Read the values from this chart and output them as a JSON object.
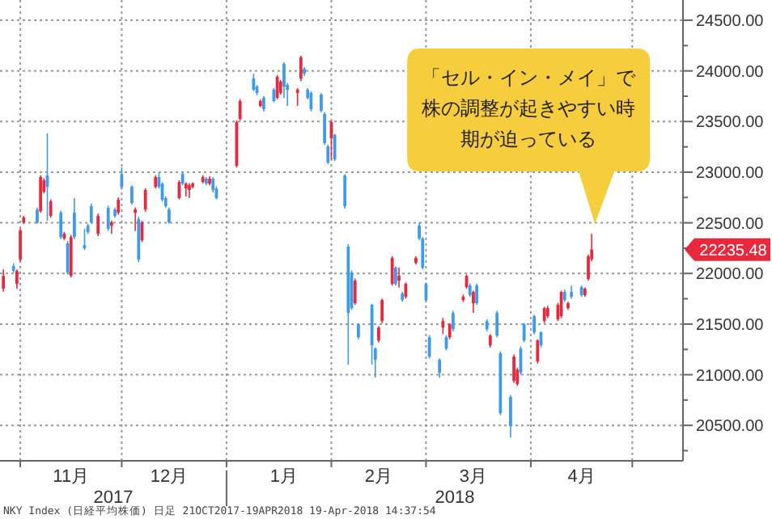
{
  "chart_data": {
    "type": "candlestick",
    "x": [
      "2017-10-27",
      "2017-10-30",
      "2017-10-31",
      "2017-11-01",
      "2017-11-02",
      "2017-11-06",
      "2017-11-07",
      "2017-11-08",
      "2017-11-09",
      "2017-11-10",
      "2017-11-13",
      "2017-11-14",
      "2017-11-15",
      "2017-11-16",
      "2017-11-17",
      "2017-11-20",
      "2017-11-21",
      "2017-11-22",
      "2017-11-24",
      "2017-11-27",
      "2017-11-28",
      "2017-11-29",
      "2017-11-30",
      "2017-12-01",
      "2017-12-04",
      "2017-12-05",
      "2017-12-06",
      "2017-12-07",
      "2017-12-08",
      "2017-12-11",
      "2017-12-12",
      "2017-12-13",
      "2017-12-14",
      "2017-12-15",
      "2017-12-18",
      "2017-12-19",
      "2017-12-20",
      "2017-12-21",
      "2017-12-22",
      "2017-12-25",
      "2017-12-26",
      "2017-12-27",
      "2017-12-28",
      "2017-12-29",
      "2018-01-04",
      "2018-01-05",
      "2018-01-09",
      "2018-01-10",
      "2018-01-11",
      "2018-01-12",
      "2018-01-15",
      "2018-01-16",
      "2018-01-17",
      "2018-01-18",
      "2018-01-19",
      "2018-01-22",
      "2018-01-23",
      "2018-01-24",
      "2018-01-25",
      "2018-01-26",
      "2018-01-29",
      "2018-01-30",
      "2018-01-31",
      "2018-02-01",
      "2018-02-02",
      "2018-02-05",
      "2018-02-06",
      "2018-02-07",
      "2018-02-08",
      "2018-02-09",
      "2018-02-13",
      "2018-02-14",
      "2018-02-15",
      "2018-02-16",
      "2018-02-19",
      "2018-02-20",
      "2018-02-21",
      "2018-02-22",
      "2018-02-23",
      "2018-02-26",
      "2018-02-27",
      "2018-02-28",
      "2018-03-01",
      "2018-03-02",
      "2018-03-05",
      "2018-03-06",
      "2018-03-07",
      "2018-03-08",
      "2018-03-09",
      "2018-03-12",
      "2018-03-13",
      "2018-03-14",
      "2018-03-15",
      "2018-03-16",
      "2018-03-19",
      "2018-03-20",
      "2018-03-22",
      "2018-03-23",
      "2018-03-26",
      "2018-03-27",
      "2018-03-28",
      "2018-03-29",
      "2018-03-30",
      "2018-04-02",
      "2018-04-03",
      "2018-04-04",
      "2018-04-05",
      "2018-04-06",
      "2018-04-09",
      "2018-04-10",
      "2018-04-11",
      "2018-04-12",
      "2018-04-13",
      "2018-04-16",
      "2018-04-17",
      "2018-04-18",
      "2018-04-19"
    ],
    "ohlc": [
      [
        21850,
        22040,
        21820,
        21975
      ],
      [
        22073,
        22100,
        22010,
        22025
      ],
      [
        21897,
        22040,
        21849,
        22025
      ],
      [
        22137,
        22440,
        22120,
        22424
      ],
      [
        22504,
        22570,
        22490,
        22552
      ],
      [
        22630,
        22650,
        22490,
        22500
      ],
      [
        22616,
        22970,
        22600,
        22951
      ],
      [
        22808,
        22940,
        22790,
        22919
      ],
      [
        22967,
        23383,
        22520,
        22855
      ],
      [
        22568,
        22730,
        22550,
        22712
      ],
      [
        22600,
        22620,
        22340,
        22360
      ],
      [
        22344,
        22410,
        22330,
        22392
      ],
      [
        22296,
        22320,
        21990,
        22009
      ],
      [
        21977,
        22380,
        21960,
        22360
      ],
      [
        22600,
        22744,
        22340,
        22360
      ],
      [
        22280,
        22440,
        22230,
        22249
      ],
      [
        22472,
        22490,
        22390,
        22408
      ],
      [
        22664,
        22690,
        22490,
        22504
      ],
      [
        22392,
        22590,
        22370,
        22568
      ],
      [
        22648,
        22670,
        22420,
        22440
      ],
      [
        22472,
        22520,
        22392,
        22504
      ],
      [
        22632,
        22650,
        22550,
        22568
      ],
      [
        22600,
        22750,
        22580,
        22728
      ],
      [
        22983,
        23047,
        22830,
        22855
      ],
      [
        22855,
        22870,
        22680,
        22696
      ],
      [
        22600,
        22650,
        22420,
        22632
      ],
      [
        22536,
        22560,
        22110,
        22137
      ],
      [
        22328,
        22520,
        22310,
        22504
      ],
      [
        22632,
        22840,
        22610,
        22824
      ],
      [
        22855,
        22970,
        22840,
        22951
      ],
      [
        22951,
        22999,
        22840,
        22855
      ],
      [
        22887,
        22900,
        22710,
        22728
      ],
      [
        22744,
        22760,
        22650,
        22664
      ],
      [
        22632,
        22650,
        22490,
        22504
      ],
      [
        22744,
        22920,
        22730,
        22903
      ],
      [
        22983,
        23000,
        22870,
        22887
      ],
      [
        22839,
        22900,
        22760,
        22887
      ],
      [
        22824,
        22890,
        22744,
        22871
      ],
      [
        22855,
        22900,
        22840,
        22887
      ],
      [
        22903,
        22970,
        22890,
        22951
      ],
      [
        22935,
        22950,
        22870,
        22887
      ],
      [
        22887,
        22960,
        22870,
        22935
      ],
      [
        22935,
        22950,
        22800,
        22824
      ],
      [
        22839,
        22860,
        22730,
        22744
      ],
      [
        23063,
        23510,
        23047,
        23494
      ],
      [
        23526,
        23720,
        23510,
        23702
      ],
      [
        23925,
        23973,
        23800,
        23814
      ],
      [
        23846,
        23860,
        23760,
        23782
      ],
      [
        23654,
        23720,
        23640,
        23702
      ],
      [
        23734,
        23750,
        23600,
        23622
      ],
      [
        23814,
        23830,
        23690,
        23702
      ],
      [
        23734,
        23960,
        23720,
        23941
      ],
      [
        23782,
        23910,
        23766,
        23894
      ],
      [
        24069,
        24085,
        23734,
        23846
      ],
      [
        23862,
        23880,
        23654,
        23814
      ],
      [
        23782,
        23830,
        23654,
        23814
      ],
      [
        23925,
        24150,
        23900,
        24133
      ],
      [
        24021,
        24040,
        23950,
        23973
      ],
      [
        23814,
        23830,
        23720,
        23734
      ],
      [
        23782,
        23800,
        23600,
        23622
      ],
      [
        23766,
        23780,
        23590,
        23606
      ],
      [
        23574,
        23590,
        23270,
        23287
      ],
      [
        23255,
        23270,
        23080,
        23095
      ],
      [
        23335,
        23510,
        23127,
        23494
      ],
      [
        23367,
        23380,
        23110,
        23127
      ],
      [
        22967,
        22980,
        22640,
        22664
      ],
      [
        22265,
        22290,
        21099,
        21610
      ],
      [
        22009,
        22030,
        21640,
        21658
      ],
      [
        21706,
        21950,
        21690,
        21929
      ],
      [
        21498,
        21510,
        21350,
        21370
      ],
      [
        21690,
        21700,
        21099,
        21290
      ],
      [
        21258,
        21270,
        20971,
        21147
      ],
      [
        21338,
        21480,
        21320,
        21466
      ],
      [
        21530,
        21750,
        21510,
        21738
      ],
      [
        21897,
        22170,
        21880,
        22153
      ],
      [
        22057,
        22070,
        21880,
        21897
      ],
      [
        21929,
        22057,
        21860,
        21977
      ],
      [
        21801,
        21820,
        21720,
        21738
      ],
      [
        21770,
        21910,
        21750,
        21897
      ],
      [
        22105,
        22170,
        22090,
        22153
      ],
      [
        22472,
        22504,
        22330,
        22344
      ],
      [
        22344,
        22360,
        22040,
        22057
      ],
      [
        21897,
        21910,
        21720,
        21738
      ],
      [
        21370,
        21390,
        21160,
        21179
      ],
      [
        21147,
        21160,
        20971,
        21019
      ],
      [
        21466,
        21560,
        21400,
        21530
      ],
      [
        21370,
        21390,
        21240,
        21258
      ],
      [
        21370,
        21510,
        21350,
        21498
      ],
      [
        21610,
        21630,
        21430,
        21450
      ],
      [
        21738,
        21790,
        21720,
        21770
      ],
      [
        21865,
        21990,
        21850,
        21977
      ],
      [
        21881,
        21900,
        21770,
        21786
      ],
      [
        21706,
        21830,
        21610,
        21817
      ],
      [
        21881,
        21900,
        21690,
        21706
      ],
      [
        21530,
        21546,
        21430,
        21450
      ],
      [
        21290,
        21400,
        21270,
        21386
      ],
      [
        21610,
        21630,
        21370,
        21386
      ],
      [
        21211,
        21230,
        20600,
        20620
      ],
      [
        20780,
        20800,
        20380,
        20492
      ],
      [
        20939,
        21200,
        20920,
        21179
      ],
      [
        20907,
        21070,
        20890,
        21051
      ],
      [
        21258,
        21280,
        21000,
        21019
      ],
      [
        21498,
        21510,
        21320,
        21338
      ],
      [
        21578,
        21590,
        21400,
        21418
      ],
      [
        21131,
        21350,
        21110,
        21338
      ],
      [
        21418,
        21430,
        21270,
        21290
      ],
      [
        21530,
        21670,
        21510,
        21658
      ],
      [
        21578,
        21680,
        21560,
        21658
      ],
      [
        21546,
        21710,
        21530,
        21690
      ],
      [
        21578,
        21830,
        21560,
        21817
      ],
      [
        21817,
        21840,
        21720,
        21738
      ],
      [
        21658,
        21720,
        21640,
        21706
      ],
      [
        21817,
        21880,
        21750,
        21770
      ],
      [
        21865,
        21880,
        21770,
        21786
      ],
      [
        21786,
        21860,
        21770,
        21849
      ],
      [
        21945,
        22185,
        21930,
        22169
      ],
      [
        22140,
        22392,
        22120,
        22235.48
      ]
    ],
    "colors": [
      "#e8283c",
      "#3d9be9",
      "#e8283c",
      "#e8283c",
      "#e8283c",
      "#3d9be9",
      "#e8283c",
      "#e8283c",
      "#3d9be9",
      "#e8283c",
      "#3d9be9",
      "#e8283c",
      "#3d9be9",
      "#e8283c",
      "#3d9be9",
      "#3d9be9",
      "#3d9be9",
      "#3d9be9",
      "#e8283c",
      "#3d9be9",
      "#e8283c",
      "#3d9be9",
      "#e8283c",
      "#3d9be9",
      "#3d9be9",
      "#e8283c",
      "#3d9be9",
      "#e8283c",
      "#e8283c",
      "#e8283c",
      "#3d9be9",
      "#3d9be9",
      "#3d9be9",
      "#3d9be9",
      "#e8283c",
      "#3d9be9",
      "#e8283c",
      "#e8283c",
      "#e8283c",
      "#e8283c",
      "#3d9be9",
      "#e8283c",
      "#3d9be9",
      "#3d9be9",
      "#e8283c",
      "#e8283c",
      "#3d9be9",
      "#3d9be9",
      "#e8283c",
      "#3d9be9",
      "#3d9be9",
      "#e8283c",
      "#e8283c",
      "#3d9be9",
      "#3d9be9",
      "#e8283c",
      "#e8283c",
      "#3d9be9",
      "#3d9be9",
      "#3d9be9",
      "#3d9be9",
      "#3d9be9",
      "#3d9be9",
      "#e8283c",
      "#3d9be9",
      "#3d9be9",
      "#3d9be9",
      "#3d9be9",
      "#e8283c",
      "#3d9be9",
      "#3d9be9",
      "#3d9be9",
      "#e8283c",
      "#e8283c",
      "#e8283c",
      "#3d9be9",
      "#e8283c",
      "#3d9be9",
      "#e8283c",
      "#e8283c",
      "#3d9be9",
      "#3d9be9",
      "#3d9be9",
      "#3d9be9",
      "#3d9be9",
      "#e8283c",
      "#3d9be9",
      "#e8283c",
      "#3d9be9",
      "#e8283c",
      "#e8283c",
      "#3d9be9",
      "#e8283c",
      "#3d9be9",
      "#3d9be9",
      "#e8283c",
      "#3d9be9",
      "#3d9be9",
      "#3d9be9",
      "#e8283c",
      "#e8283c",
      "#3d9be9",
      "#3d9be9",
      "#3d9be9",
      "#e8283c",
      "#3d9be9",
      "#e8283c",
      "#e8283c",
      "#e8283c",
      "#e8283c",
      "#3d9be9",
      "#e8283c",
      "#3d9be9",
      "#3d9be9",
      "#e8283c",
      "#e8283c",
      "#e8283c"
    ],
    "xlim": [
      "2017-10-26",
      "2018-05-16"
    ],
    "xticks": [
      {
        "value": "2017-11-01",
        "label": null
      },
      {
        "value": "2017-11-16",
        "label": "11月"
      },
      {
        "value": "2017-12-01",
        "label": null
      },
      {
        "value": "2017-12-15",
        "label": "12月"
      },
      {
        "value": "2018-01-01",
        "label": null
      },
      {
        "value": "2018-01-18",
        "label": "1月"
      },
      {
        "value": "2018-02-01",
        "label": null
      },
      {
        "value": "2018-02-15",
        "label": "2月"
      },
      {
        "value": "2018-03-01",
        "label": null
      },
      {
        "value": "2018-03-15",
        "label": "3月"
      },
      {
        "value": "2018-04-01",
        "label": null
      },
      {
        "value": "2018-04-16",
        "label": "4月"
      },
      {
        "value": "2018-05-01",
        "label": null
      }
    ],
    "ylim": [
      20150,
      24700
    ],
    "yticks": [
      {
        "value": 20250,
        "label": null
      },
      {
        "value": 20500,
        "label": "20500.00"
      },
      {
        "value": 20750,
        "label": null
      },
      {
        "value": 21000,
        "label": "21000.00"
      },
      {
        "value": 21250,
        "label": null
      },
      {
        "value": 21500,
        "label": "21500.00"
      },
      {
        "value": 21750,
        "label": null
      },
      {
        "value": 22000,
        "label": "22000.00"
      },
      {
        "value": 22250,
        "label": null
      },
      {
        "value": 22500,
        "label": "22500.00"
      },
      {
        "value": 22750,
        "label": null
      },
      {
        "value": 23000,
        "label": "23000.00"
      },
      {
        "value": 23250,
        "label": null
      },
      {
        "value": 23500,
        "label": "23500.00"
      },
      {
        "value": 23750,
        "label": null
      },
      {
        "value": 24000,
        "label": "24000.00"
      },
      {
        "value": 24250,
        "label": null
      },
      {
        "value": 24500,
        "label": "24500.00"
      }
    ],
    "grid": true,
    "annotations": [
      "「セル・イン・メイ」で株の調整が起きやすい時期が迫っている",
      "22235.48",
      "2017",
      "2018",
      "NKY Index (日経平均株価)   日足 21OCT2017-19APR2018   19-Apr-2018 14:37:54"
    ]
  }
}
